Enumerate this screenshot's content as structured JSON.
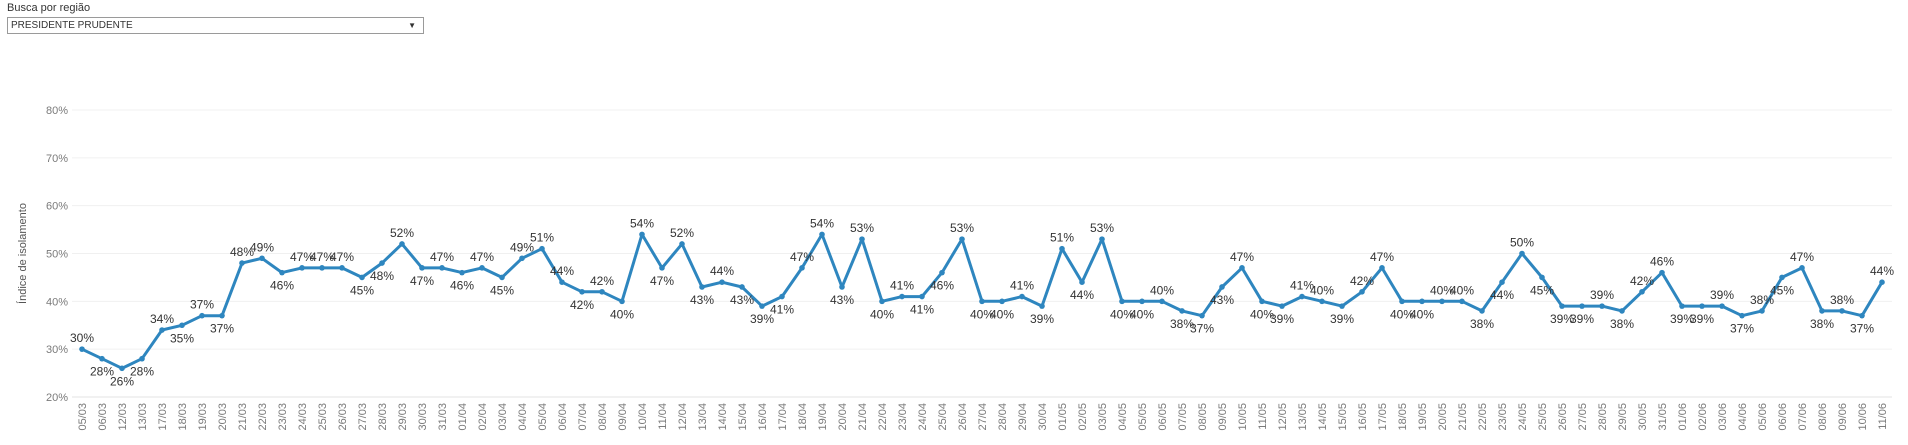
{
  "filter": {
    "label": "Busca por região",
    "selected": "PRESIDENTE PRUDENTE",
    "icon": "chevron-down-icon"
  },
  "chart_data": {
    "type": "line",
    "ylabel": "Índice de isolamento",
    "xlabel": "",
    "ylim": [
      20,
      80
    ],
    "yticks": [
      "20%",
      "30%",
      "40%",
      "50%",
      "60%",
      "70%",
      "80%"
    ],
    "grid": true,
    "color": "#2e86bf",
    "categories": [
      "05/03",
      "06/03",
      "12/03",
      "13/03",
      "17/03",
      "18/03",
      "19/03",
      "20/03",
      "21/03",
      "22/03",
      "23/03",
      "24/03",
      "25/03",
      "26/03",
      "27/03",
      "28/03",
      "29/03",
      "30/03",
      "31/03",
      "01/04",
      "02/04",
      "03/04",
      "04/04",
      "05/04",
      "06/04",
      "07/04",
      "08/04",
      "09/04",
      "10/04",
      "11/04",
      "12/04",
      "13/04",
      "14/04",
      "15/04",
      "16/04",
      "17/04",
      "18/04",
      "19/04",
      "20/04",
      "21/04",
      "22/04",
      "23/04",
      "24/04",
      "25/04",
      "26/04",
      "27/04",
      "28/04",
      "29/04",
      "30/04",
      "01/05",
      "02/05",
      "03/05",
      "04/05",
      "05/05",
      "06/05",
      "07/05",
      "08/05",
      "09/05",
      "10/05",
      "11/05",
      "12/05",
      "13/05",
      "14/05",
      "15/05",
      "16/05",
      "17/05",
      "18/05",
      "19/05",
      "20/05",
      "21/05",
      "22/05",
      "23/05",
      "24/05",
      "25/05",
      "26/05",
      "27/05",
      "28/05",
      "29/05",
      "30/05",
      "31/05",
      "01/06",
      "02/06",
      "03/06",
      "04/06",
      "05/06",
      "06/06",
      "07/06",
      "08/06",
      "09/06",
      "10/06",
      "11/06"
    ],
    "values": [
      30,
      28,
      26,
      28,
      34,
      35,
      37,
      37,
      48,
      49,
      46,
      47,
      47,
      47,
      45,
      48,
      52,
      47,
      47,
      46,
      47,
      45,
      49,
      51,
      44,
      42,
      42,
      40,
      54,
      47,
      52,
      43,
      44,
      43,
      39,
      41,
      47,
      54,
      43,
      53,
      40,
      41,
      41,
      46,
      53,
      40,
      40,
      41,
      39,
      51,
      44,
      53,
      40,
      40,
      40,
      38,
      37,
      43,
      47,
      40,
      39,
      41,
      40,
      39,
      42,
      47,
      40,
      40,
      40,
      40,
      38,
      44,
      50,
      45,
      39,
      39,
      39,
      38,
      42,
      46,
      39,
      39,
      39,
      37,
      38,
      45,
      47,
      38,
      38,
      37,
      44
    ],
    "labels": [
      "30%",
      "28%",
      "26%",
      "28%",
      "34%",
      "35%",
      "37%",
      "37%",
      "48%",
      "49%",
      "46%",
      "47%",
      "47%",
      "47%",
      "45%",
      "48%",
      "52%",
      "47%",
      "47%",
      "46%",
      "47%",
      "45%",
      "49%",
      "51%",
      "44%",
      "42%",
      "42%",
      "40%",
      "54%",
      "47%",
      "52%",
      "43%",
      "44%",
      "43%",
      "39%",
      "41%",
      "47%",
      "54%",
      "43%",
      "53%",
      "40%",
      "41%",
      "41%",
      "46%",
      "53%",
      "40%",
      "40%",
      "41%",
      "39%",
      "51%",
      "44%",
      "53%",
      "40%",
      "40%",
      "40%",
      "38%",
      "37%",
      "43%",
      "47%",
      "40%",
      "39%",
      "41%",
      "40%",
      "39%",
      "42%",
      "47%",
      "40%",
      "40%",
      "40%",
      "40%",
      "38%",
      "44%",
      "50%",
      "45%",
      "39%",
      "39%",
      "39%",
      "38%",
      "42%",
      "46%",
      "39%",
      "39%",
      "39%",
      "37%",
      "38%",
      "45%",
      "47%",
      "38%",
      "38%",
      "37%",
      "44%"
    ]
  }
}
